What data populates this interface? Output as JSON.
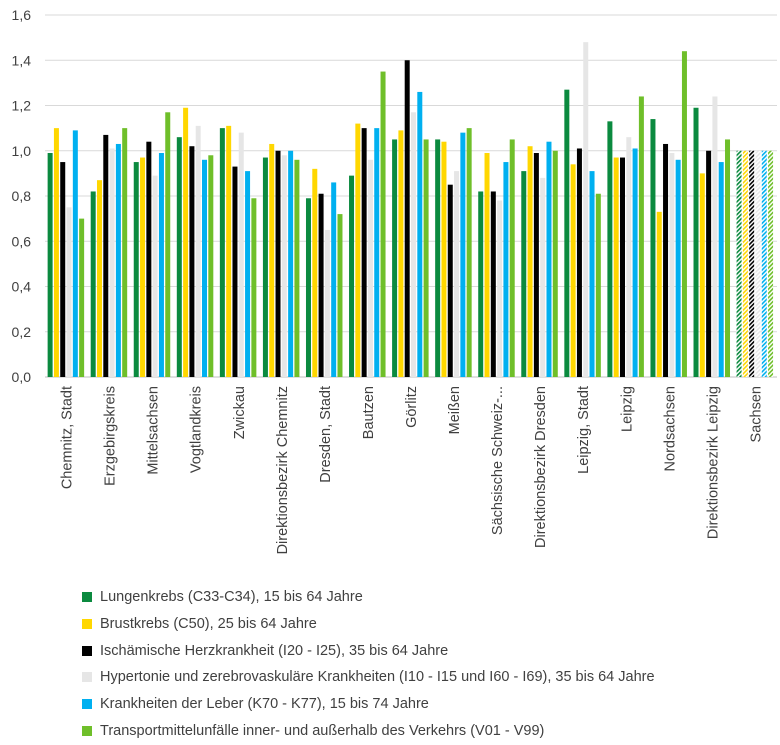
{
  "chart_data": {
    "type": "bar",
    "title": "",
    "xlabel": "",
    "ylabel": "",
    "ylim": [
      0,
      1.6
    ],
    "yticks": [
      "0,0",
      "0,2",
      "0,4",
      "0,6",
      "0,8",
      "1,0",
      "1,2",
      "1,4",
      "1,6"
    ],
    "grid": true,
    "legend_position": "bottom",
    "categories": [
      "Chemnitz, Stadt",
      "Erzgebirgskreis",
      "Mittelsachsen",
      "Vogtlandkreis",
      "Zwickau",
      "Direktionsbezirk Chemnitz",
      "Dresden, Stadt",
      "Bautzen",
      "Görlitz",
      "Meißen",
      "Sächsische Schweiz-...",
      "Direktionsbezirk Dresden",
      "Leipzig, Stadt",
      "Leipzig",
      "Nordsachsen",
      "Direktionsbezirk Leipzig",
      "Sachsen"
    ],
    "hatched_category": "Sachsen",
    "series": [
      {
        "name": "Lungenkrebs (C33-C34), 15 bis 64 Jahre",
        "color": "#0b8a3f",
        "values": [
          0.99,
          0.82,
          0.95,
          1.06,
          1.1,
          0.97,
          0.79,
          0.89,
          1.05,
          1.05,
          0.82,
          0.91,
          1.27,
          1.13,
          1.14,
          1.19,
          1.0
        ]
      },
      {
        "name": "Brustkrebs (C50), 25 bis 64 Jahre",
        "color": "#ffd700",
        "values": [
          1.1,
          0.87,
          0.97,
          1.19,
          1.11,
          1.03,
          0.92,
          1.12,
          1.09,
          1.04,
          0.99,
          1.02,
          0.94,
          0.97,
          0.73,
          0.9,
          1.0
        ]
      },
      {
        "name": "Ischämische Herzkrankheit (I20 - I25), 35 bis 64 Jahre",
        "color": "#000000",
        "values": [
          0.95,
          1.07,
          1.04,
          1.02,
          0.93,
          1.0,
          0.81,
          1.1,
          1.4,
          0.85,
          0.82,
          0.99,
          1.01,
          0.97,
          1.03,
          1.0,
          1.0
        ]
      },
      {
        "name": "Hypertonie und zerebrovaskuläre Krankheiten (I10 - I15 und I60 - I69), 35 bis 64 Jahre",
        "color": "#e6e6e6",
        "values": [
          0.75,
          1.01,
          0.89,
          1.11,
          1.08,
          0.98,
          0.65,
          0.96,
          1.17,
          0.91,
          0.78,
          0.88,
          1.48,
          1.06,
          0.99,
          1.24,
          1.0
        ]
      },
      {
        "name": "Krankheiten der Leber (K70 - K77),  15 bis 74 Jahre",
        "color": "#00b0f0",
        "values": [
          1.09,
          1.03,
          0.99,
          0.96,
          0.91,
          1.0,
          0.86,
          1.1,
          1.26,
          1.08,
          0.95,
          1.04,
          0.91,
          1.01,
          0.96,
          0.95,
          1.0
        ]
      },
      {
        "name": "Transportmittelunfälle inner- und außerhalb des Verkehrs (V01 - V99)",
        "color": "#6fbf2a",
        "values": [
          0.7,
          1.1,
          1.17,
          0.98,
          0.79,
          0.96,
          0.72,
          1.35,
          1.05,
          1.1,
          1.05,
          1.0,
          0.81,
          1.24,
          1.44,
          1.05,
          1.0
        ]
      }
    ]
  }
}
